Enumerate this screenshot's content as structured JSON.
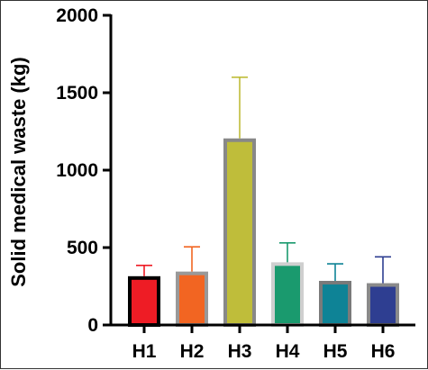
{
  "chart_data": {
    "type": "bar",
    "title": "",
    "xlabel": "",
    "ylabel": "Solid medical waste (kg)",
    "ylim": [
      0,
      2000
    ],
    "yticks": [
      "0",
      "500",
      "1000",
      "1500",
      "2000"
    ],
    "grid": false,
    "categories": [
      "H1",
      "H2",
      "H3",
      "H4",
      "H5",
      "H6"
    ],
    "values": [
      315,
      345,
      1205,
      405,
      285,
      270
    ],
    "error_upper": [
      385,
      505,
      1600,
      530,
      395,
      440
    ],
    "colors": [
      "#ee1c25",
      "#f26522",
      "#bfbd3a",
      "#1a9a6e",
      "#0e8396",
      "#2e3e91"
    ],
    "edge_colors": [
      "#000000",
      "#999999",
      "#888888",
      "#cfcfcf",
      "#7a7a7a",
      "#8a8a8a"
    ]
  }
}
